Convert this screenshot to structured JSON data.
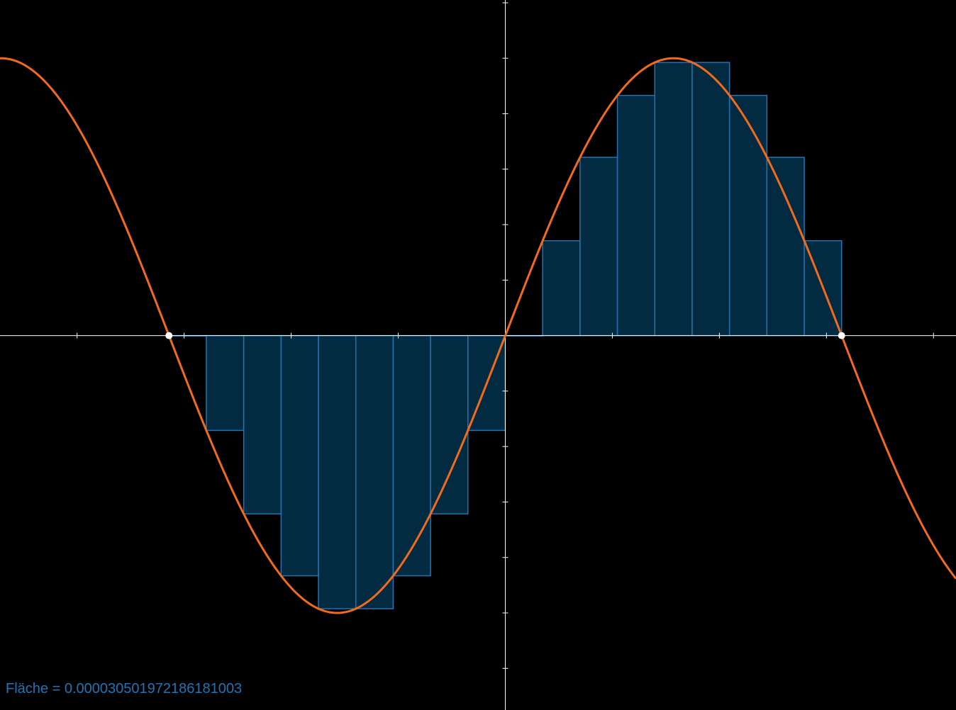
{
  "chart_data": {
    "type": "area",
    "function": "sin(x)",
    "xlim": [
      -4.72,
      4.21
    ],
    "ylim": [
      -1.35,
      1.21
    ],
    "x_ticks": [
      -4,
      -3,
      -2,
      -1,
      1,
      2,
      3,
      4
    ],
    "y_ticks": [
      -1.2,
      -1.0,
      -0.8,
      -0.6,
      -0.4,
      -0.2,
      0.2,
      0.4,
      0.6,
      0.8,
      1.0,
      1.2
    ],
    "interval": [
      -3.14159265,
      3.14159265
    ],
    "subdivisions": 18,
    "rule": "left",
    "bars": [
      {
        "x": -3.1416,
        "value": 0.0
      },
      {
        "x": -2.7925,
        "value": -0.342
      },
      {
        "x": -2.4435,
        "value": -0.6428
      },
      {
        "x": -2.0944,
        "value": -0.866
      },
      {
        "x": -1.7453,
        "value": -0.9848
      },
      {
        "x": -1.3963,
        "value": -0.9848
      },
      {
        "x": -1.0472,
        "value": -0.866
      },
      {
        "x": -0.6981,
        "value": -0.6428
      },
      {
        "x": -0.3491,
        "value": -0.342
      },
      {
        "x": 0.0,
        "value": 0.0
      },
      {
        "x": 0.3491,
        "value": 0.342
      },
      {
        "x": 0.6981,
        "value": 0.6428
      },
      {
        "x": 1.0472,
        "value": 0.866
      },
      {
        "x": 1.3963,
        "value": 0.9848
      },
      {
        "x": 1.7453,
        "value": 0.9848
      },
      {
        "x": 2.0944,
        "value": 0.866
      },
      {
        "x": 2.4435,
        "value": 0.6428
      },
      {
        "x": 2.7925,
        "value": 0.342
      }
    ],
    "endpoints": [
      {
        "x": -3.1416,
        "y": 0
      },
      {
        "x": 3.1416,
        "y": 0
      }
    ],
    "area_text": "Fläche = 0.000030501972186181003",
    "colors": {
      "background": "#000000",
      "curve": "#f26a1b",
      "bar_fill": "#022a40",
      "bar_stroke": "#1f74b4",
      "axes": "#ffffff",
      "label": "#1f74b4",
      "points": "#ffffff"
    }
  }
}
